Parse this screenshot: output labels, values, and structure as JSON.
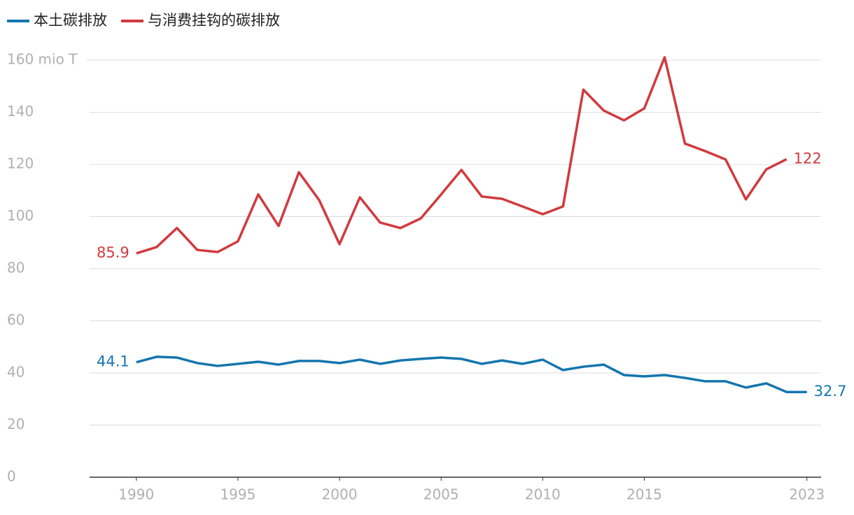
{
  "chart_data": {
    "type": "line",
    "x": [
      1990,
      1991,
      1992,
      1993,
      1994,
      1995,
      1996,
      1997,
      1998,
      1999,
      2000,
      2001,
      2002,
      2003,
      2004,
      2005,
      2006,
      2007,
      2008,
      2009,
      2010,
      2011,
      2012,
      2013,
      2014,
      2015,
      2016,
      2017,
      2018,
      2019,
      2020,
      2021,
      2022,
      2023
    ],
    "series": [
      {
        "name": "本土碳排放",
        "color": "#1476ae",
        "values": [
          44.1,
          46.2,
          45.9,
          43.8,
          42.7,
          43.5,
          44.3,
          43.2,
          44.6,
          44.6,
          43.8,
          45.1,
          43.5,
          44.8,
          45.4,
          45.9,
          45.4,
          43.5,
          44.8,
          43.5,
          45.1,
          41.1,
          42.4,
          43.2,
          39.2,
          38.7,
          39.2,
          38.1,
          36.8,
          36.8,
          34.4,
          36.0,
          32.7,
          32.7
        ]
      },
      {
        "name": "与消费挂钩的碳排放",
        "color": "#d13a3e",
        "values": [
          85.9,
          88.3,
          95.6,
          87.2,
          86.4,
          90.5,
          108.5,
          96.4,
          117,
          106.3,
          89.4,
          107.4,
          97.7,
          95.6,
          99.3,
          108.5,
          117.9,
          107.7,
          106.8,
          103.9,
          100.9,
          103.9,
          148.7,
          140.7,
          136.9,
          141.5,
          161.1,
          128,
          125.1,
          121.9,
          106.6,
          118.1,
          122,
          null
        ]
      }
    ],
    "xlim": [
      1987.7,
      2023.7
    ],
    "xticks": [
      1990,
      1995,
      2000,
      2005,
      2010,
      2015,
      2023
    ],
    "ylim": [
      0,
      160
    ],
    "yticks": [
      0,
      20,
      40,
      60,
      80,
      100,
      120,
      140,
      {
        "value": 160,
        "label": "160 mio T"
      }
    ],
    "grid": true
  }
}
